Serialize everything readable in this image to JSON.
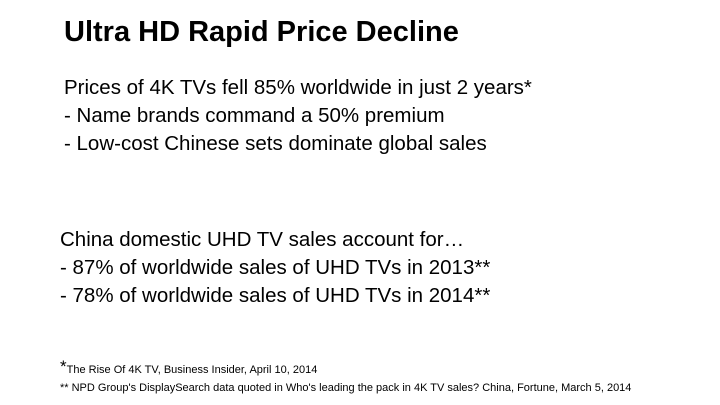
{
  "slide": {
    "title": "Ultra HD Rapid Price Decline",
    "block1": [
      "Prices of 4K TVs fell 85% worldwide in just 2 years*",
      "- Name brands command a 50% premium",
      "- Low-cost Chinese sets dominate global sales"
    ],
    "block2": [
      "China domestic UHD TV sales account for…",
      "- 87% of worldwide sales of UHD TVs in 2013**",
      "- 78% of worldwide sales of UHD TVs in 2014**"
    ],
    "footnotes": {
      "f1_mark": "*",
      "f1_text": "The Rise Of 4K TV, Business Insider, April 10, 2014",
      "f2_text": "** NPD Group's DisplaySearch data quoted in Who's leading the pack in 4K TV sales? China, Fortune, March 5, 2014"
    }
  }
}
